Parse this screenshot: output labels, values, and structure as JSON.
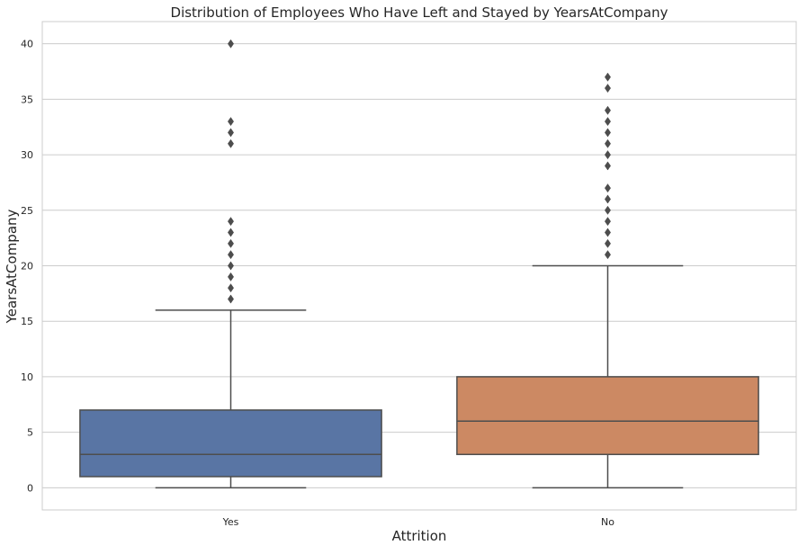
{
  "chart_data": {
    "type": "box",
    "title": "Distribution of Employees Who Have Left and Stayed by YearsAtCompany",
    "xlabel": "Attrition",
    "ylabel": "YearsAtCompany",
    "categories": [
      "Yes",
      "No"
    ],
    "ylim": [
      -2,
      42
    ],
    "yticks": [
      0,
      5,
      10,
      15,
      20,
      25,
      30,
      35,
      40
    ],
    "grid": true,
    "grid_axis": "y",
    "legend": "none",
    "boxes": [
      {
        "category": "Yes",
        "color": "#5975a4",
        "whisker_low": 0,
        "q1": 1,
        "median": 3,
        "q3": 7,
        "whisker_high": 16,
        "outliers": [
          17,
          18,
          19,
          20,
          21,
          22,
          23,
          24,
          31,
          32,
          33,
          40
        ]
      },
      {
        "category": "No",
        "color": "#cc8963",
        "whisker_low": 0,
        "q1": 3,
        "median": 6,
        "q3": 10,
        "whisker_high": 20,
        "outliers": [
          21,
          22,
          23,
          24,
          25,
          26,
          27,
          29,
          30,
          31,
          32,
          33,
          34,
          36,
          37
        ]
      }
    ]
  }
}
